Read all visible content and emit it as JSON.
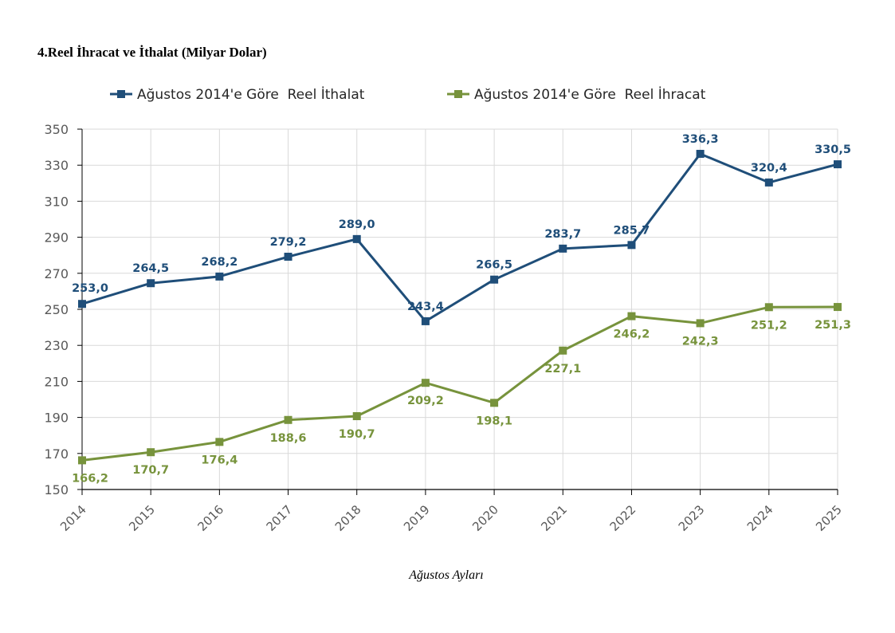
{
  "chart_data": {
    "type": "line",
    "title": "4.Reel İhracat ve İthalat (Milyar Dolar)",
    "xlabel": "Ağustos Ayları",
    "ylabel": "",
    "categories": [
      "2014",
      "2015",
      "2016",
      "2017",
      "2018",
      "2019",
      "2020",
      "2021",
      "2022",
      "2023",
      "2024",
      "2025"
    ],
    "ylim": [
      150,
      350
    ],
    "yticks": [
      150,
      170,
      190,
      210,
      230,
      250,
      270,
      290,
      310,
      330,
      350
    ],
    "grid": true,
    "legend_position": "top",
    "series": [
      {
        "name": "Ağustos 2014'e Göre  Reel İthalat",
        "color": "#1F4E79",
        "marker": "square",
        "values": [
          253.0,
          264.5,
          268.2,
          279.2,
          289.0,
          243.4,
          266.5,
          283.7,
          285.7,
          336.3,
          320.4,
          330.5
        ],
        "labels": [
          "253,0",
          "264,5",
          "268,2",
          "279,2",
          "289,0",
          "243,4",
          "266,5",
          "283,7",
          "285,7",
          "336,3",
          "320,4",
          "330,5"
        ],
        "label_position": "above"
      },
      {
        "name": "Ağustos 2014'e Göre  Reel İhracat",
        "color": "#77933C",
        "marker": "square",
        "values": [
          166.2,
          170.7,
          176.4,
          188.6,
          190.7,
          209.2,
          198.1,
          227.1,
          246.2,
          242.3,
          251.2,
          251.3
        ],
        "labels": [
          "166,2",
          "170,7",
          "176,4",
          "188,6",
          "190,7",
          "209,2",
          "198,1",
          "227,1",
          "246,2",
          "242,3",
          "251,2",
          "251,3"
        ],
        "label_position": "below"
      }
    ]
  }
}
